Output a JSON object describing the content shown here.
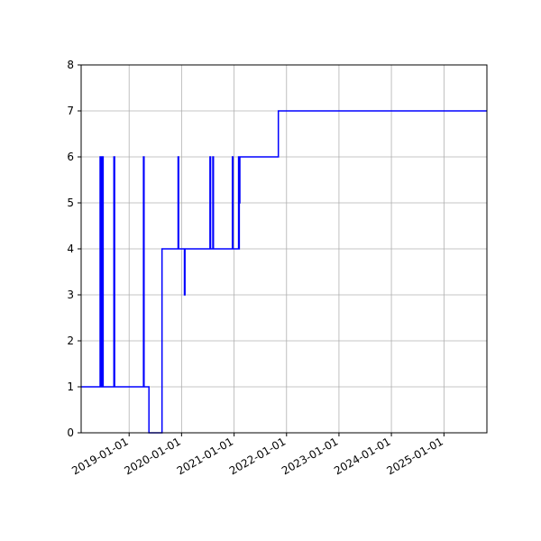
{
  "chart_data": {
    "type": "line",
    "title": "",
    "xlabel": "",
    "ylabel": "",
    "xlim": [
      "2018-02-01",
      "2025-10-27"
    ],
    "ylim": [
      0,
      8
    ],
    "grid": true,
    "x_ticks": [
      "2019-01-01",
      "2020-01-01",
      "2021-01-01",
      "2022-01-01",
      "2023-01-01",
      "2024-01-01",
      "2025-01-01"
    ],
    "y_ticks": [
      0,
      1,
      2,
      3,
      4,
      5,
      6,
      7,
      8
    ],
    "series": [
      {
        "color": "#0000ff",
        "step": true,
        "points": [
          [
            "2018-02-01",
            1
          ],
          [
            "2018-06-13",
            1
          ],
          [
            "2018-06-13",
            6
          ],
          [
            "2018-06-17",
            6
          ],
          [
            "2018-06-17",
            1
          ],
          [
            "2018-06-19",
            1
          ],
          [
            "2018-06-19",
            6
          ],
          [
            "2018-06-22",
            6
          ],
          [
            "2018-06-22",
            1
          ],
          [
            "2018-06-24",
            1
          ],
          [
            "2018-06-24",
            6
          ],
          [
            "2018-06-27",
            6
          ],
          [
            "2018-06-27",
            1
          ],
          [
            "2018-06-30",
            1
          ],
          [
            "2018-06-30",
            6
          ],
          [
            "2018-07-04",
            6
          ],
          [
            "2018-07-04",
            1
          ],
          [
            "2018-09-17",
            1
          ],
          [
            "2018-09-17",
            6
          ],
          [
            "2018-09-22",
            6
          ],
          [
            "2018-09-22",
            1
          ],
          [
            "2019-04-11",
            1
          ],
          [
            "2019-04-11",
            6
          ],
          [
            "2019-04-15",
            6
          ],
          [
            "2019-04-15",
            1
          ],
          [
            "2019-05-19",
            1
          ],
          [
            "2019-05-19",
            0
          ],
          [
            "2019-08-18",
            0
          ],
          [
            "2019-08-18",
            4
          ],
          [
            "2019-12-08",
            4
          ],
          [
            "2019-12-08",
            6
          ],
          [
            "2019-12-12",
            6
          ],
          [
            "2019-12-12",
            4
          ],
          [
            "2020-01-21",
            4
          ],
          [
            "2020-01-21",
            3
          ],
          [
            "2020-01-25",
            3
          ],
          [
            "2020-01-25",
            4
          ],
          [
            "2020-07-17",
            4
          ],
          [
            "2020-07-17",
            6
          ],
          [
            "2020-07-21",
            6
          ],
          [
            "2020-07-21",
            4
          ],
          [
            "2020-08-06",
            4
          ],
          [
            "2020-08-06",
            6
          ],
          [
            "2020-08-10",
            6
          ],
          [
            "2020-08-10",
            4
          ],
          [
            "2020-12-20",
            4
          ],
          [
            "2020-12-20",
            6
          ],
          [
            "2020-12-24",
            6
          ],
          [
            "2020-12-24",
            4
          ],
          [
            "2021-02-01",
            4
          ],
          [
            "2021-02-01",
            6
          ],
          [
            "2021-02-04",
            6
          ],
          [
            "2021-02-04",
            4
          ],
          [
            "2021-02-06",
            4
          ],
          [
            "2021-02-06",
            5
          ],
          [
            "2021-02-10",
            5
          ],
          [
            "2021-02-10",
            6
          ],
          [
            "2021-11-05",
            6
          ],
          [
            "2021-11-05",
            7
          ],
          [
            "2025-10-27",
            7
          ]
        ]
      }
    ]
  }
}
